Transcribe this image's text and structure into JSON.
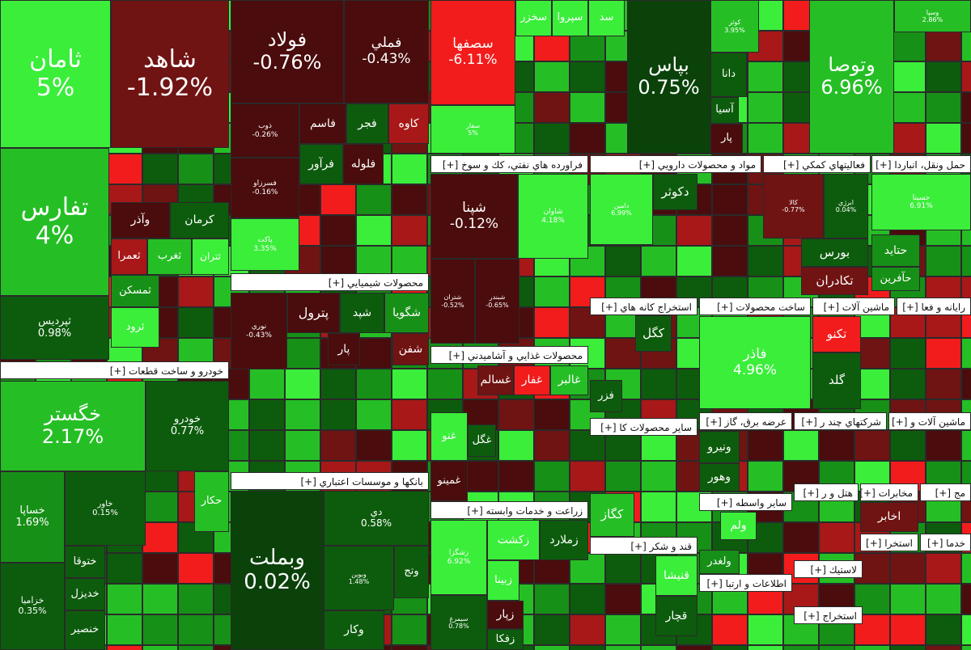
{
  "sectors": [
    {
      "title": "خودرو و ساخت قطعات [+]"
    },
    {
      "title": "محصولات شيميايي [+]"
    },
    {
      "title": "بانكها و موسسات اعتباري [+]"
    },
    {
      "title": "فراورده هاي نفتي، كك و سوخ [+]"
    },
    {
      "title": "محصولات غذايي و آشاميدني [+]"
    },
    {
      "title": "زراعت و خدمات وابسته [+]"
    },
    {
      "title": "مواد و محصولات دارويي [+]"
    },
    {
      "title": "استخراج كانه هاي [+]"
    },
    {
      "title": "ساير محصولات كا [+]"
    },
    {
      "title": "قند و شكر [+]"
    },
    {
      "title": "فعاليتهاي كمكي [+]"
    },
    {
      "title": "حمل ونقل، انباردا [+]"
    },
    {
      "title": "ساخت محصولات [+]"
    },
    {
      "title": "ماشين آلات [+]"
    },
    {
      "title": "رايانه و فعا [+]"
    },
    {
      "title": "عرضه برق، گاز [+]"
    },
    {
      "title": "شركتهاي چند ر [+]"
    },
    {
      "title": "ماشين آلات و [+]"
    },
    {
      "title": "ساير واسطه [+]"
    },
    {
      "title": "اطلاعات و ارتبا [+]"
    },
    {
      "title": "هتل و ر [+]"
    },
    {
      "title": "مخابرات [+]"
    },
    {
      "title": "مج [+]"
    },
    {
      "title": "استخرا [+]"
    },
    {
      "title": "خدما [+]"
    },
    {
      "title": "لاستيك [+]"
    },
    {
      "title": "استخراج [+]"
    }
  ],
  "tiles": [
    {
      "label": "ثامان",
      "change": "5%"
    },
    {
      "label": "شاهد",
      "change": "-1.92%"
    },
    {
      "label": "تفارس",
      "change": "4%"
    },
    {
      "label": "ثپرديس",
      "change": "0.98%"
    },
    {
      "label": "كرمان"
    },
    {
      "label": "وآذر"
    },
    {
      "label": "ثعمرا"
    },
    {
      "label": "ثغرب"
    },
    {
      "label": "ثتران"
    },
    {
      "label": "ثمسكن"
    },
    {
      "label": "ثرود"
    },
    {
      "label": "خگستر",
      "change": "2.17%"
    },
    {
      "label": "خودرو",
      "change": "0.77%"
    },
    {
      "label": "خساپا",
      "change": "1.69%"
    },
    {
      "label": "خزاميا",
      "change": "0.35%"
    },
    {
      "label": "خاور",
      "change": "0.15%"
    },
    {
      "label": "ختوقا"
    },
    {
      "label": "خديزل"
    },
    {
      "label": "خنصير"
    },
    {
      "label": "حكار"
    },
    {
      "label": "فولاد",
      "change": "-0.76%"
    },
    {
      "label": "فملي",
      "change": "-0.43%"
    },
    {
      "label": "ذوب",
      "change": "-0.26%"
    },
    {
      "label": "فاسم"
    },
    {
      "label": "فجر"
    },
    {
      "label": "كاوه"
    },
    {
      "label": "فلوله"
    },
    {
      "label": "فرآور"
    },
    {
      "label": "فسرزاو",
      "change": "-0.16%"
    },
    {
      "label": "پاكت",
      "change": "3.35%"
    },
    {
      "label": "نوري",
      "change": "-0.43%"
    },
    {
      "label": "پترول"
    },
    {
      "label": "شپد"
    },
    {
      "label": "شگويا"
    },
    {
      "label": "شفن"
    },
    {
      "label": "پار"
    },
    {
      "label": "دي",
      "change": "0.58%"
    },
    {
      "label": "وتج"
    },
    {
      "label": "وبملت",
      "change": "0.02%"
    },
    {
      "label": "وبوين",
      "change": "1.48%"
    },
    {
      "label": "وكار"
    },
    {
      "label": "سصفها",
      "change": "-6.11%"
    },
    {
      "label": "سخزر"
    },
    {
      "label": "سپروا"
    },
    {
      "label": "سد"
    },
    {
      "label": "سفار",
      "change": "5%"
    },
    {
      "label": "بپاس",
      "change": "0.75%"
    },
    {
      "label": "كوثر",
      "change": "3.95%"
    },
    {
      "label": "دانا"
    },
    {
      "label": "آسيا"
    },
    {
      "label": "پار"
    },
    {
      "label": "وتوصا",
      "change": "6.96%"
    },
    {
      "label": "وسپا",
      "change": "2.86%"
    },
    {
      "label": "شپنا",
      "change": "-0.12%"
    },
    {
      "label": "شاوان",
      "change": "4.18%"
    },
    {
      "label": "شتران",
      "change": "-0.52%"
    },
    {
      "label": "شبندر",
      "change": "-0.65%"
    },
    {
      "label": "غسالم"
    },
    {
      "label": "غفار"
    },
    {
      "label": "غالبر"
    },
    {
      "label": "غگل"
    },
    {
      "label": "غمينو"
    },
    {
      "label": "غنو"
    },
    {
      "label": "زشگزا",
      "change": "6.92%"
    },
    {
      "label": "زكشت"
    },
    {
      "label": "زملارد"
    },
    {
      "label": "زبينا"
    },
    {
      "label": "سيمرغ",
      "change": "0.78%"
    },
    {
      "label": "زپار"
    },
    {
      "label": "زفكا"
    },
    {
      "label": "دامين",
      "change": "6.99%"
    },
    {
      "label": "دكوثر"
    },
    {
      "label": "كگل"
    },
    {
      "label": "فزر"
    },
    {
      "label": "كگاز"
    },
    {
      "label": "قنيشا"
    },
    {
      "label": "قچار"
    },
    {
      "label": "كالا",
      "change": "-0.77%"
    },
    {
      "label": "ابرژي",
      "change": "0.04%"
    },
    {
      "label": "بورس"
    },
    {
      "label": "تكادران"
    },
    {
      "label": "حسينا",
      "change": "6.91%"
    },
    {
      "label": "حتايد"
    },
    {
      "label": "حآفرين"
    },
    {
      "label": "فاذر",
      "change": "4.96%"
    },
    {
      "label": "تكنو"
    },
    {
      "label": "گلد"
    },
    {
      "label": "ونيرو"
    },
    {
      "label": "وهور"
    },
    {
      "label": "ولم"
    },
    {
      "label": "ولغدر"
    },
    {
      "label": "اخابر"
    }
  ]
}
